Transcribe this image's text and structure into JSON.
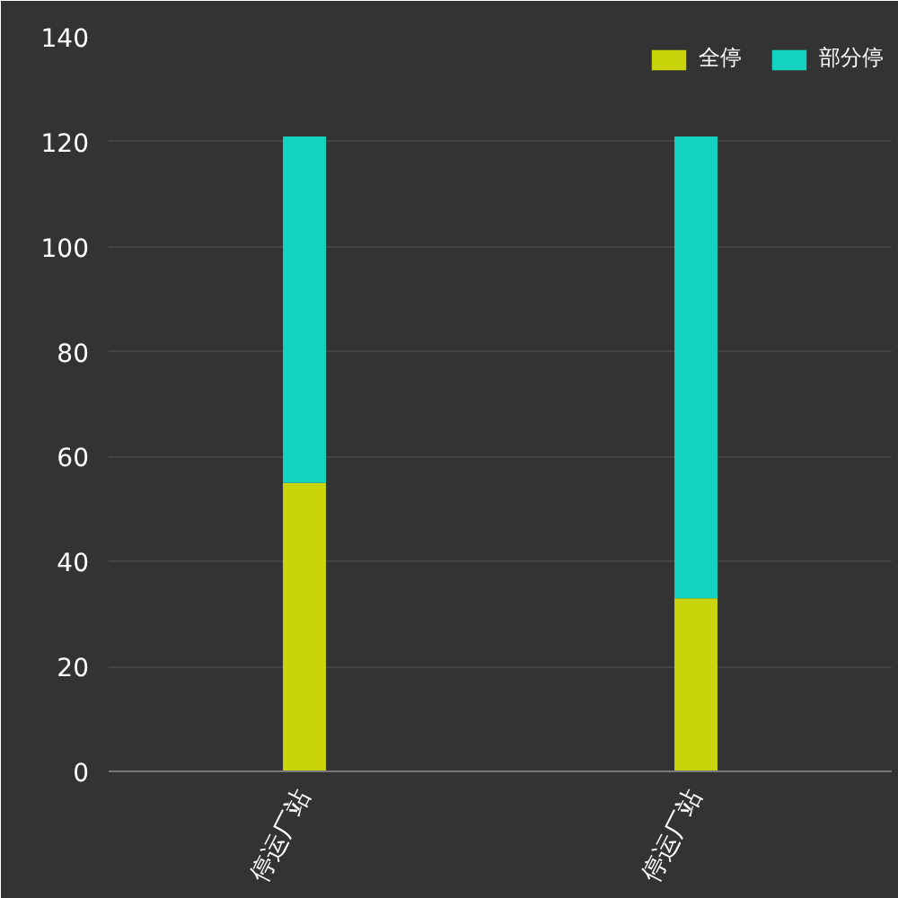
{
  "chart_data": {
    "type": "bar",
    "stacked": true,
    "categories": [
      "停运厂站",
      "停运厂站"
    ],
    "series": [
      {
        "name": "全停",
        "color": "#c9d40a",
        "values": [
          55,
          33
        ]
      },
      {
        "name": "部分停",
        "color": "#14d2c0",
        "values": [
          66,
          88
        ]
      }
    ],
    "ylim": [
      0,
      140
    ],
    "yticks": [
      0,
      20,
      40,
      60,
      80,
      100,
      120,
      140
    ],
    "grid": "y",
    "legend": "top right"
  }
}
